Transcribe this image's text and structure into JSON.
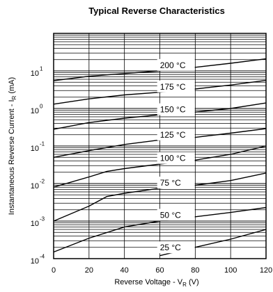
{
  "chart_data": {
    "type": "line",
    "title": "Typical Reverse Characteristics",
    "xlabel": {
      "main": "Reverse Voltage - V",
      "sub": "R",
      "unit": " (V)"
    },
    "ylabel": {
      "main": "Instantaneous Reverse Current - I",
      "sub": "R",
      "unit": " (mA)"
    },
    "scale_y": "log",
    "xlim": [
      0,
      120
    ],
    "ylim": [
      0.0001,
      100
    ],
    "x_ticks": [
      "0",
      "20",
      "40",
      "60",
      "80",
      "100",
      "120"
    ],
    "y_ticks": [
      {
        "base": "10",
        "exp": "-4"
      },
      {
        "base": "10",
        "exp": "-3"
      },
      {
        "base": "10",
        "exp": "-2"
      },
      {
        "base": "10",
        "exp": "-1"
      },
      {
        "base": "10",
        "exp": "0"
      },
      {
        "base": "10",
        "exp": "1"
      }
    ],
    "grid": true,
    "series": [
      {
        "name": "200 °C",
        "x": [
          0,
          20,
          40,
          60,
          80,
          100,
          120
        ],
        "y": [
          5.5,
          7.2,
          8.5,
          10,
          12.5,
          16,
          21
        ]
      },
      {
        "name": "175 °C",
        "x": [
          0,
          20,
          40,
          60,
          80,
          100,
          120
        ],
        "y": [
          1.3,
          1.8,
          2.3,
          2.7,
          3.3,
          4.2,
          5.6
        ]
      },
      {
        "name": "150 °C",
        "x": [
          0,
          20,
          40,
          60,
          80,
          100,
          120
        ],
        "y": [
          0.28,
          0.42,
          0.55,
          0.68,
          0.8,
          1.0,
          1.4
        ]
      },
      {
        "name": "125 °C",
        "x": [
          0,
          20,
          40,
          60,
          80,
          100,
          120
        ],
        "y": [
          0.05,
          0.075,
          0.11,
          0.145,
          0.17,
          0.22,
          0.29
        ]
      },
      {
        "name": "100 °C",
        "x": [
          0,
          20,
          30,
          40,
          60,
          80,
          100,
          120
        ],
        "y": [
          0.008,
          0.015,
          0.021,
          0.025,
          0.033,
          0.042,
          0.06,
          0.1
        ]
      },
      {
        "name": "75 °C",
        "x": [
          0,
          20,
          30,
          40,
          60,
          80,
          100,
          120
        ],
        "y": [
          0.001,
          0.0025,
          0.0045,
          0.0055,
          0.0075,
          0.009,
          0.012,
          0.019
        ]
      },
      {
        "name": "50 °C",
        "x": [
          0,
          20,
          40,
          60,
          80,
          100,
          120
        ],
        "y": [
          0.00015,
          0.00035,
          0.0007,
          0.001,
          0.0013,
          0.0017,
          0.0023
        ]
      },
      {
        "name": "25 °C",
        "x": [
          60,
          80,
          100,
          120
        ],
        "y": [
          0.00012,
          0.0002,
          0.00033,
          0.0006
        ]
      }
    ]
  }
}
